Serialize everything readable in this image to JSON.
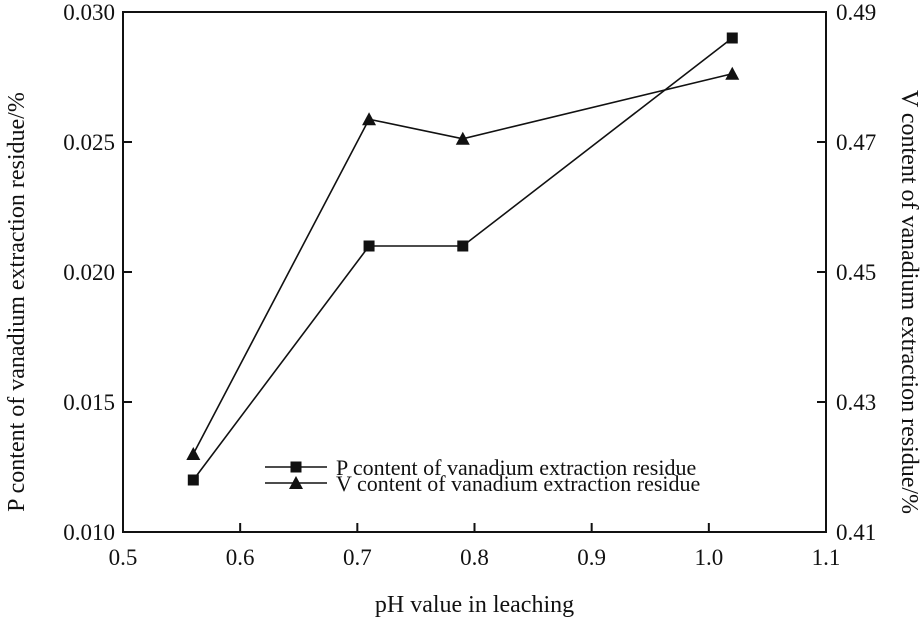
{
  "chart_data": {
    "type": "line",
    "title": "",
    "xlabel": "pH value in leaching",
    "ylabel_left": "P content of vanadium extraction residue/%",
    "ylabel_right": "V content of vanadium extraction residue/%",
    "xlim": [
      0.5,
      1.1
    ],
    "ylim_left": [
      0.01,
      0.03
    ],
    "ylim_right": [
      0.41,
      0.49
    ],
    "x_ticks": [
      "0.5",
      "0.6",
      "0.7",
      "0.8",
      "0.9",
      "1.0",
      "1.1"
    ],
    "y_left_ticks": [
      "0.010",
      "0.015",
      "0.020",
      "0.025",
      "0.030"
    ],
    "y_right_ticks": [
      "0.41",
      "0.43",
      "0.45",
      "0.47",
      "0.49"
    ],
    "grid": false,
    "legend_position": "lower-right",
    "series": [
      {
        "name": "P content of vanadium extraction residue",
        "marker": "square",
        "axis": "left",
        "x": [
          0.56,
          0.71,
          0.79,
          1.02
        ],
        "values": [
          0.012,
          0.021,
          0.021,
          0.029
        ]
      },
      {
        "name": "V content of vanadium extraction residue",
        "marker": "triangle",
        "axis": "right",
        "x": [
          0.56,
          0.71,
          0.79,
          1.02
        ],
        "values": [
          0.422,
          0.4735,
          0.4705,
          0.4805
        ]
      }
    ]
  }
}
